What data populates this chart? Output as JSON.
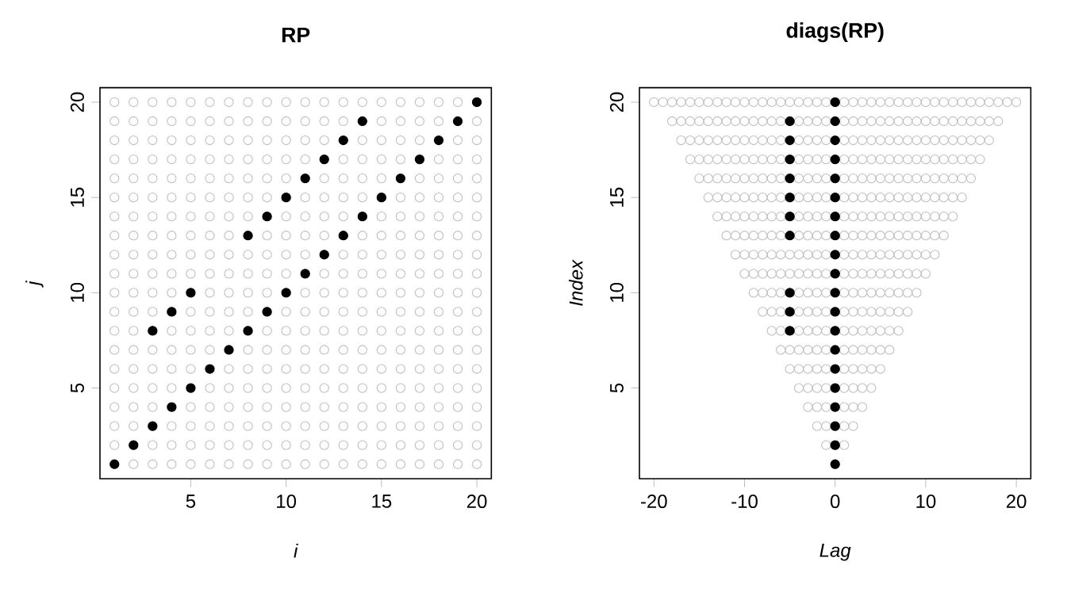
{
  "chart_data": [
    {
      "type": "scatter",
      "title": "RP",
      "xlabel": "i",
      "ylabel": "j",
      "xlim": [
        0.24,
        20.76
      ],
      "ylim": [
        0.24,
        20.76
      ],
      "xticks": [
        5,
        10,
        15,
        20
      ],
      "yticks": [
        5,
        10,
        15,
        20
      ],
      "series": [
        {
          "color": "#bebebe",
          "x": [
            2,
            3,
            4,
            5,
            6,
            7,
            8,
            9,
            10,
            11,
            12,
            13,
            14,
            15,
            16,
            17,
            18,
            19,
            20
          ],
          "values": [
            1,
            1,
            1,
            1,
            1,
            1,
            1,
            1,
            1,
            1,
            1,
            1,
            1,
            1,
            1,
            1,
            1,
            1,
            1
          ]
        },
        {
          "color": "#bebebe",
          "x": [
            1,
            3,
            4,
            5,
            6,
            7,
            8,
            9,
            10,
            11,
            12,
            13,
            14,
            15,
            16,
            17,
            18,
            19,
            20
          ],
          "values": [
            2,
            2,
            2,
            2,
            2,
            2,
            2,
            2,
            2,
            2,
            2,
            2,
            2,
            2,
            2,
            2,
            2,
            2,
            2
          ]
        },
        {
          "color": "#bebebe",
          "x": [
            1,
            2,
            4,
            5,
            6,
            7,
            8,
            9,
            10,
            11,
            12,
            13,
            14,
            15,
            16,
            17,
            18,
            19,
            20
          ],
          "values": [
            3,
            3,
            3,
            3,
            3,
            3,
            3,
            3,
            3,
            3,
            3,
            3,
            3,
            3,
            3,
            3,
            3,
            3,
            3
          ]
        },
        {
          "color": "#bebebe",
          "x": [
            1,
            2,
            3,
            5,
            6,
            7,
            8,
            9,
            10,
            11,
            12,
            13,
            14,
            15,
            16,
            17,
            18,
            19,
            20
          ],
          "values": [
            4,
            4,
            4,
            4,
            4,
            4,
            4,
            4,
            4,
            4,
            4,
            4,
            4,
            4,
            4,
            4,
            4,
            4,
            4
          ]
        },
        {
          "color": "#bebebe",
          "x": [
            1,
            2,
            3,
            4,
            6,
            7,
            8,
            9,
            10,
            11,
            12,
            13,
            14,
            15,
            16,
            17,
            18,
            19,
            20
          ],
          "values": [
            5,
            5,
            5,
            5,
            5,
            5,
            5,
            5,
            5,
            5,
            5,
            5,
            5,
            5,
            5,
            5,
            5,
            5,
            5
          ]
        },
        {
          "color": "#bebebe",
          "x": [
            1,
            2,
            3,
            4,
            5,
            7,
            8,
            9,
            10,
            11,
            12,
            13,
            14,
            15,
            16,
            17,
            18,
            19,
            20
          ],
          "values": [
            6,
            6,
            6,
            6,
            6,
            6,
            6,
            6,
            6,
            6,
            6,
            6,
            6,
            6,
            6,
            6,
            6,
            6,
            6
          ]
        },
        {
          "color": "#bebebe",
          "x": [
            1,
            2,
            3,
            4,
            5,
            6,
            8,
            9,
            10,
            11,
            12,
            13,
            14,
            15,
            16,
            17,
            18,
            19,
            20
          ],
          "values": [
            7,
            7,
            7,
            7,
            7,
            7,
            7,
            7,
            7,
            7,
            7,
            7,
            7,
            7,
            7,
            7,
            7,
            7,
            7
          ]
        },
        {
          "color": "#bebebe",
          "x": [
            1,
            2,
            4,
            5,
            6,
            7,
            9,
            10,
            11,
            12,
            13,
            14,
            15,
            16,
            17,
            18,
            19,
            20
          ],
          "values": [
            8,
            8,
            8,
            8,
            8,
            8,
            8,
            8,
            8,
            8,
            8,
            8,
            8,
            8,
            8,
            8,
            8,
            8
          ]
        },
        {
          "color": "#bebebe",
          "x": [
            1,
            2,
            3,
            5,
            6,
            7,
            8,
            10,
            11,
            12,
            13,
            14,
            15,
            16,
            17,
            18,
            19,
            20
          ],
          "values": [
            9,
            9,
            9,
            9,
            9,
            9,
            9,
            9,
            9,
            9,
            9,
            9,
            9,
            9,
            9,
            9,
            9,
            9
          ]
        },
        {
          "color": "#bebebe",
          "x": [
            1,
            2,
            3,
            4,
            6,
            7,
            8,
            9,
            11,
            12,
            13,
            14,
            15,
            16,
            17,
            18,
            19,
            20
          ],
          "values": [
            10,
            10,
            10,
            10,
            10,
            10,
            10,
            10,
            10,
            10,
            10,
            10,
            10,
            10,
            10,
            10,
            10,
            10
          ]
        },
        {
          "color": "#bebebe",
          "x": [
            1,
            2,
            3,
            4,
            5,
            6,
            7,
            8,
            9,
            10,
            12,
            13,
            14,
            15,
            16,
            17,
            18,
            19,
            20
          ],
          "values": [
            11,
            11,
            11,
            11,
            11,
            11,
            11,
            11,
            11,
            11,
            11,
            11,
            11,
            11,
            11,
            11,
            11,
            11,
            11
          ]
        },
        {
          "color": "#bebebe",
          "x": [
            1,
            2,
            3,
            4,
            5,
            6,
            7,
            8,
            9,
            10,
            11,
            13,
            14,
            15,
            16,
            17,
            18,
            19,
            20
          ],
          "values": [
            12,
            12,
            12,
            12,
            12,
            12,
            12,
            12,
            12,
            12,
            12,
            12,
            12,
            12,
            12,
            12,
            12,
            12,
            12
          ]
        },
        {
          "color": "#bebebe",
          "x": [
            1,
            2,
            3,
            4,
            5,
            6,
            7,
            9,
            10,
            11,
            12,
            14,
            15,
            16,
            17,
            18,
            19,
            20
          ],
          "values": [
            13,
            13,
            13,
            13,
            13,
            13,
            13,
            13,
            13,
            13,
            13,
            13,
            13,
            13,
            13,
            13,
            13,
            13
          ]
        },
        {
          "color": "#bebebe",
          "x": [
            1,
            2,
            3,
            4,
            5,
            6,
            7,
            8,
            10,
            11,
            12,
            13,
            15,
            16,
            17,
            18,
            19,
            20
          ],
          "values": [
            14,
            14,
            14,
            14,
            14,
            14,
            14,
            14,
            14,
            14,
            14,
            14,
            14,
            14,
            14,
            14,
            14,
            14
          ]
        },
        {
          "color": "#bebebe",
          "x": [
            1,
            2,
            3,
            4,
            5,
            6,
            7,
            8,
            9,
            11,
            12,
            13,
            14,
            16,
            17,
            18,
            19,
            20
          ],
          "values": [
            15,
            15,
            15,
            15,
            15,
            15,
            15,
            15,
            15,
            15,
            15,
            15,
            15,
            15,
            15,
            15,
            15,
            15
          ]
        },
        {
          "color": "#bebebe",
          "x": [
            1,
            2,
            3,
            4,
            5,
            6,
            7,
            8,
            9,
            10,
            12,
            13,
            14,
            15,
            17,
            18,
            19,
            20
          ],
          "values": [
            16,
            16,
            16,
            16,
            16,
            16,
            16,
            16,
            16,
            16,
            16,
            16,
            16,
            16,
            16,
            16,
            16,
            16
          ]
        },
        {
          "color": "#bebebe",
          "x": [
            1,
            2,
            3,
            4,
            5,
            6,
            7,
            8,
            9,
            10,
            11,
            13,
            14,
            15,
            16,
            18,
            19,
            20
          ],
          "values": [
            17,
            17,
            17,
            17,
            17,
            17,
            17,
            17,
            17,
            17,
            17,
            17,
            17,
            17,
            17,
            17,
            17,
            17
          ]
        },
        {
          "color": "#bebebe",
          "x": [
            1,
            2,
            3,
            4,
            5,
            6,
            7,
            8,
            9,
            10,
            11,
            12,
            14,
            15,
            16,
            17,
            19,
            20
          ],
          "values": [
            18,
            18,
            18,
            18,
            18,
            18,
            18,
            18,
            18,
            18,
            18,
            18,
            18,
            18,
            18,
            18,
            18,
            18
          ]
        },
        {
          "color": "#bebebe",
          "x": [
            1,
            2,
            3,
            4,
            5,
            6,
            7,
            8,
            9,
            10,
            11,
            12,
            13,
            15,
            16,
            17,
            18,
            20
          ],
          "values": [
            19,
            19,
            19,
            19,
            19,
            19,
            19,
            19,
            19,
            19,
            19,
            19,
            19,
            19,
            19,
            19,
            19,
            19
          ]
        },
        {
          "color": "#bebebe",
          "x": [
            1,
            2,
            3,
            4,
            5,
            6,
            7,
            8,
            9,
            10,
            11,
            12,
            13,
            14,
            15,
            16,
            17,
            18,
            19
          ],
          "values": [
            20,
            20,
            20,
            20,
            20,
            20,
            20,
            20,
            20,
            20,
            20,
            20,
            20,
            20,
            20,
            20,
            20,
            20,
            20
          ]
        },
        {
          "color": "#000000",
          "x": [
            1,
            2,
            3,
            4,
            5,
            6,
            7,
            8,
            9,
            10,
            11,
            12,
            13,
            14,
            15,
            16,
            17,
            18,
            19,
            20,
            3,
            4,
            5,
            8,
            9,
            10,
            11,
            12,
            13,
            14
          ],
          "values": [
            1,
            2,
            3,
            4,
            5,
            6,
            7,
            8,
            9,
            10,
            11,
            12,
            13,
            14,
            15,
            16,
            17,
            18,
            19,
            20,
            8,
            9,
            10,
            13,
            14,
            15,
            16,
            17,
            18,
            19
          ]
        }
      ]
    },
    {
      "type": "scatter",
      "title": "diags(RP)",
      "xlabel": "Lag",
      "ylabel": "Index",
      "xlim": [
        -21.6,
        21.6
      ],
      "ylim": [
        0.24,
        20.76
      ],
      "xticks": [
        -20,
        -10,
        0,
        10,
        20
      ],
      "yticks": [
        5,
        10,
        15,
        20
      ],
      "series": [
        {
          "color": "#bebebe",
          "x": [
            -1,
            1
          ],
          "values": [
            2,
            2
          ]
        },
        {
          "color": "#bebebe",
          "x": [
            -2,
            -1,
            1,
            2
          ],
          "values": [
            3,
            3,
            3,
            3
          ]
        },
        {
          "color": "#bebebe",
          "x": [
            -3,
            -2,
            -1,
            1,
            2,
            3
          ],
          "values": [
            4,
            4,
            4,
            4,
            4,
            4
          ]
        },
        {
          "color": "#bebebe",
          "x": [
            -4,
            -3,
            -2,
            -1,
            1,
            2,
            3,
            4
          ],
          "values": [
            5,
            5,
            5,
            5,
            5,
            5,
            5,
            5
          ]
        },
        {
          "color": "#bebebe",
          "x": [
            -5,
            -4,
            -3,
            -2,
            -1,
            1,
            2,
            3,
            4,
            5
          ],
          "values": [
            6,
            6,
            6,
            6,
            6,
            6,
            6,
            6,
            6,
            6
          ]
        },
        {
          "color": "#bebebe",
          "x": [
            -6,
            -5,
            -4,
            -3,
            -2,
            -1,
            1,
            2,
            3,
            4,
            5,
            6
          ],
          "values": [
            7,
            7,
            7,
            7,
            7,
            7,
            7,
            7,
            7,
            7,
            7,
            7
          ]
        },
        {
          "color": "#bebebe",
          "x": [
            -7,
            -6,
            -4,
            -3,
            -2,
            -1,
            1,
            2,
            3,
            4,
            5,
            6,
            7
          ],
          "values": [
            8,
            8,
            8,
            8,
            8,
            8,
            8,
            8,
            8,
            8,
            8,
            8,
            8
          ]
        },
        {
          "color": "#bebebe",
          "x": [
            -8,
            -7,
            -6,
            -4,
            -3,
            -2,
            -1,
            1,
            2,
            3,
            4,
            5,
            6,
            7,
            8
          ],
          "values": [
            9,
            9,
            9,
            9,
            9,
            9,
            9,
            9,
            9,
            9,
            9,
            9,
            9,
            9,
            9
          ]
        },
        {
          "color": "#bebebe",
          "x": [
            -9,
            -8,
            -7,
            -6,
            -4,
            -3,
            -2,
            -1,
            1,
            2,
            3,
            4,
            5,
            6,
            7,
            8,
            9
          ],
          "values": [
            10,
            10,
            10,
            10,
            10,
            10,
            10,
            10,
            10,
            10,
            10,
            10,
            10,
            10,
            10,
            10,
            10
          ]
        },
        {
          "color": "#bebebe",
          "x": [
            -10,
            -9,
            -8,
            -7,
            -6,
            -5,
            -4,
            -3,
            -2,
            -1,
            1,
            2,
            3,
            4,
            5,
            6,
            7,
            8,
            9,
            10
          ],
          "values": [
            11,
            11,
            11,
            11,
            11,
            11,
            11,
            11,
            11,
            11,
            11,
            11,
            11,
            11,
            11,
            11,
            11,
            11,
            11,
            11
          ]
        },
        {
          "color": "#bebebe",
          "x": [
            -11,
            -10,
            -9,
            -8,
            -7,
            -6,
            -5,
            -4,
            -3,
            -2,
            -1,
            1,
            2,
            3,
            4,
            5,
            6,
            7,
            8,
            9,
            10,
            11
          ],
          "values": [
            12,
            12,
            12,
            12,
            12,
            12,
            12,
            12,
            12,
            12,
            12,
            12,
            12,
            12,
            12,
            12,
            12,
            12,
            12,
            12,
            12,
            12
          ]
        },
        {
          "color": "#bebebe",
          "x": [
            -12,
            -11,
            -10,
            -9,
            -8,
            -7,
            -6,
            -4,
            -3,
            -2,
            -1,
            1,
            2,
            3,
            4,
            5,
            6,
            7,
            8,
            9,
            10,
            11,
            12
          ],
          "values": [
            13,
            13,
            13,
            13,
            13,
            13,
            13,
            13,
            13,
            13,
            13,
            13,
            13,
            13,
            13,
            13,
            13,
            13,
            13,
            13,
            13,
            13,
            13
          ]
        },
        {
          "color": "#bebebe",
          "x": [
            -13,
            -12,
            -11,
            -10,
            -9,
            -8,
            -7,
            -6,
            -4,
            -3,
            -2,
            -1,
            1,
            2,
            3,
            4,
            5,
            6,
            7,
            8,
            9,
            10,
            11,
            12,
            13
          ],
          "values": [
            14,
            14,
            14,
            14,
            14,
            14,
            14,
            14,
            14,
            14,
            14,
            14,
            14,
            14,
            14,
            14,
            14,
            14,
            14,
            14,
            14,
            14,
            14,
            14,
            14
          ]
        },
        {
          "color": "#bebebe",
          "x": [
            -14,
            -13,
            -12,
            -11,
            -10,
            -9,
            -8,
            -7,
            -6,
            -4,
            -3,
            -2,
            -1,
            1,
            2,
            3,
            4,
            5,
            6,
            7,
            8,
            9,
            10,
            11,
            12,
            13,
            14
          ],
          "values": [
            15,
            15,
            15,
            15,
            15,
            15,
            15,
            15,
            15,
            15,
            15,
            15,
            15,
            15,
            15,
            15,
            15,
            15,
            15,
            15,
            15,
            15,
            15,
            15,
            15,
            15,
            15
          ]
        },
        {
          "color": "#bebebe",
          "x": [
            -15,
            -14,
            -13,
            -12,
            -11,
            -10,
            -9,
            -8,
            -7,
            -6,
            -4,
            -3,
            -2,
            -1,
            1,
            2,
            3,
            4,
            5,
            6,
            7,
            8,
            9,
            10,
            11,
            12,
            13,
            14,
            15
          ],
          "values": [
            16,
            16,
            16,
            16,
            16,
            16,
            16,
            16,
            16,
            16,
            16,
            16,
            16,
            16,
            16,
            16,
            16,
            16,
            16,
            16,
            16,
            16,
            16,
            16,
            16,
            16,
            16,
            16,
            16
          ]
        },
        {
          "color": "#bebebe",
          "x": [
            -16,
            -15,
            -14,
            -13,
            -12,
            -11,
            -10,
            -9,
            -8,
            -7,
            -6,
            -4,
            -3,
            -2,
            -1,
            1,
            2,
            3,
            4,
            5,
            6,
            7,
            8,
            9,
            10,
            11,
            12,
            13,
            14,
            15,
            16
          ],
          "values": [
            17,
            17,
            17,
            17,
            17,
            17,
            17,
            17,
            17,
            17,
            17,
            17,
            17,
            17,
            17,
            17,
            17,
            17,
            17,
            17,
            17,
            17,
            17,
            17,
            17,
            17,
            17,
            17,
            17,
            17,
            17
          ]
        },
        {
          "color": "#bebebe",
          "x": [
            -17,
            -16,
            -15,
            -14,
            -13,
            -12,
            -11,
            -10,
            -9,
            -8,
            -7,
            -6,
            -4,
            -3,
            -2,
            -1,
            1,
            2,
            3,
            4,
            5,
            6,
            7,
            8,
            9,
            10,
            11,
            12,
            13,
            14,
            15,
            16,
            17
          ],
          "values": [
            18,
            18,
            18,
            18,
            18,
            18,
            18,
            18,
            18,
            18,
            18,
            18,
            18,
            18,
            18,
            18,
            18,
            18,
            18,
            18,
            18,
            18,
            18,
            18,
            18,
            18,
            18,
            18,
            18,
            18,
            18,
            18,
            18
          ]
        },
        {
          "color": "#bebebe",
          "x": [
            -18,
            -17,
            -16,
            -15,
            -14,
            -13,
            -12,
            -11,
            -10,
            -9,
            -8,
            -7,
            -6,
            -4,
            -3,
            -2,
            -1,
            1,
            2,
            3,
            4,
            5,
            6,
            7,
            8,
            9,
            10,
            11,
            12,
            13,
            14,
            15,
            16,
            17,
            18
          ],
          "values": [
            19,
            19,
            19,
            19,
            19,
            19,
            19,
            19,
            19,
            19,
            19,
            19,
            19,
            19,
            19,
            19,
            19,
            19,
            19,
            19,
            19,
            19,
            19,
            19,
            19,
            19,
            19,
            19,
            19,
            19,
            19,
            19,
            19,
            19,
            19
          ]
        },
        {
          "color": "#bebebe",
          "x": [
            -20,
            -19,
            -18,
            -17,
            -16,
            -15,
            -14,
            -13,
            -12,
            -11,
            -10,
            -9,
            -8,
            -7,
            -6,
            -5,
            -4,
            -3,
            -2,
            -1,
            1,
            2,
            3,
            4,
            5,
            6,
            7,
            8,
            9,
            10,
            11,
            12,
            13,
            14,
            15,
            16,
            17,
            18,
            19,
            20
          ],
          "values": [
            20,
            20,
            20,
            20,
            20,
            20,
            20,
            20,
            20,
            20,
            20,
            20,
            20,
            20,
            20,
            20,
            20,
            20,
            20,
            20,
            20,
            20,
            20,
            20,
            20,
            20,
            20,
            20,
            20,
            20,
            20,
            20,
            20,
            20,
            20,
            20,
            20,
            20,
            20,
            20
          ]
        },
        {
          "color": "#000000",
          "x": [
            0,
            0,
            0,
            0,
            0,
            0,
            0,
            0,
            0,
            0,
            0,
            0,
            0,
            0,
            0,
            0,
            0,
            0,
            0,
            0,
            -5,
            -5,
            -5,
            -5,
            -5,
            -5,
            -5,
            -5,
            -5,
            -5
          ],
          "values": [
            1,
            2,
            3,
            4,
            5,
            6,
            7,
            8,
            9,
            10,
            11,
            12,
            13,
            14,
            15,
            16,
            17,
            18,
            19,
            20,
            8,
            9,
            10,
            13,
            14,
            15,
            16,
            17,
            18,
            19
          ]
        }
      ]
    }
  ]
}
